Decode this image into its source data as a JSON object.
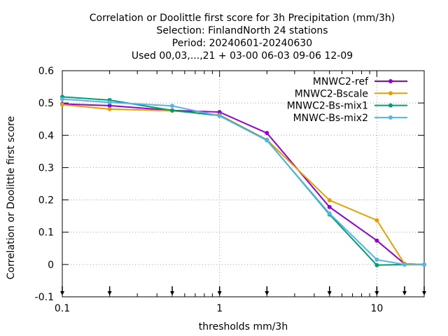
{
  "chart_data": {
    "type": "line",
    "title_lines": [
      "Correlation or Doolittle first score  for 3h Precipitation (mm/3h)",
      "Selection: FinlandNorth     24 stations",
      "Period: 20240601-20240630",
      "Used 00,03,...,21 + 03-00 06-03 09-06 12-09"
    ],
    "xlabel": "thresholds mm/3h",
    "ylabel": "Correlation or Doolittle first score",
    "xscale": "log",
    "xlim": [
      0.1,
      20
    ],
    "ylim": [
      -0.1,
      0.6
    ],
    "xticks": [
      0.1,
      1,
      10
    ],
    "xtick_labels": [
      "0.1",
      "1",
      "10"
    ],
    "yticks": [
      -0.1,
      0,
      0.1,
      0.2,
      0.3,
      0.4,
      0.5,
      0.6
    ],
    "ytick_labels": [
      "-0.1",
      "0",
      "0.1",
      "0.2",
      "0.3",
      "0.4",
      "0.5",
      "0.6"
    ],
    "grid": true,
    "legend_position": "top-right",
    "x": [
      0.1,
      0.2,
      0.5,
      1,
      2,
      5,
      10,
      15,
      20
    ],
    "series": [
      {
        "name": "MNWC2-ref",
        "color": "#9400d3",
        "values": [
          0.497,
          0.492,
          0.477,
          0.472,
          0.407,
          0.178,
          0.074,
          0.002,
          0.0
        ]
      },
      {
        "name": "MNWC2-Bscale",
        "color": "#e69f00",
        "values": [
          0.495,
          0.481,
          0.476,
          0.463,
          0.386,
          0.199,
          0.137,
          0.002,
          0.0
        ]
      },
      {
        "name": "MNWC2-Bs-mix1",
        "color": "#009e73",
        "values": [
          0.519,
          0.509,
          0.477,
          0.461,
          0.385,
          0.155,
          -0.002,
          0.0,
          0.0
        ]
      },
      {
        "name": "MNWC-Bs-mix2",
        "color": "#56b4e9",
        "values": [
          0.512,
          0.502,
          0.491,
          0.46,
          0.384,
          0.158,
          0.015,
          0.0,
          0.0
        ]
      }
    ],
    "threshold_arrows": [
      0.1,
      0.2,
      0.5,
      1,
      2,
      5,
      10,
      15,
      20
    ]
  }
}
